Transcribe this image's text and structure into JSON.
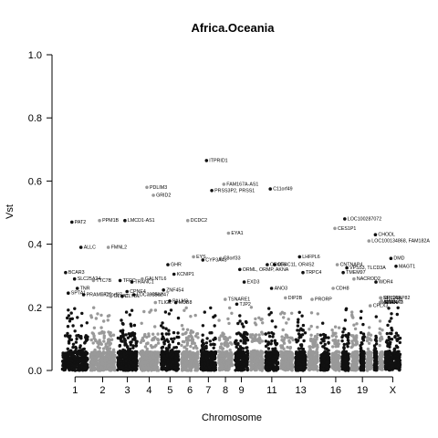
{
  "chart_data": {
    "type": "scatter",
    "title": "Africa.Oceania",
    "xlabel": "Chromosome",
    "ylabel": "Vst",
    "ylim": [
      0,
      1.0
    ],
    "yticks": [
      "0.0",
      "0.2",
      "0.4",
      "0.6",
      "0.8",
      "1.0"
    ],
    "chromosome_ticks": [
      "1",
      "2",
      "3",
      "4",
      "5",
      "6",
      "7",
      "8",
      "9",
      "11",
      "13",
      "16",
      "19",
      "X"
    ],
    "colors": {
      "odd": "#111111",
      "even": "#999999"
    },
    "grid": false,
    "legend": "none",
    "background_points": "dense cloud of SNP points per chromosome mostly below Vst 0.15",
    "labeled_points": [
      {
        "gene": "PAT2",
        "chr": "1",
        "vst": 0.47
      },
      {
        "gene": "PPM1B",
        "chr": "2",
        "vst": 0.475
      },
      {
        "gene": "LMCD1-AS1",
        "chr": "3",
        "vst": 0.475
      },
      {
        "gene": "PDLIM3",
        "chr": "4",
        "vst": 0.58
      },
      {
        "gene": "GRID2",
        "chr": "4",
        "vst": 0.555
      },
      {
        "gene": "DCDC2",
        "chr": "6",
        "vst": 0.475
      },
      {
        "gene": "ITPRID1",
        "chr": "7",
        "vst": 0.665
      },
      {
        "gene": "FAM167A-AS1",
        "chr": "8",
        "vst": 0.59
      },
      {
        "gene": "PRSS3P2, PRSS1",
        "chr": "7",
        "vst": 0.57
      },
      {
        "gene": "C11orf49",
        "chr": "11",
        "vst": 0.575
      },
      {
        "gene": "EYA1",
        "chr": "8",
        "vst": 0.435
      },
      {
        "gene": "LOC100287072",
        "chr": "17",
        "vst": 0.48
      },
      {
        "gene": "CES1P1",
        "chr": "16",
        "vst": 0.45
      },
      {
        "gene": "CHODL",
        "chr": "21",
        "vst": 0.43
      },
      {
        "gene": "LOC100134868, FAM182A",
        "chr": "20",
        "vst": 0.41
      },
      {
        "gene": "ALLC",
        "chr": "1",
        "vst": 0.39
      },
      {
        "gene": "FMNL2",
        "chr": "2",
        "vst": 0.39
      },
      {
        "gene": "EYS",
        "chr": "6",
        "vst": 0.36
      },
      {
        "gene": "C8orf33",
        "chr": "8",
        "vst": 0.355
      },
      {
        "gene": "CYP3A43",
        "chr": "7",
        "vst": 0.35
      },
      {
        "gene": "LHFPL6",
        "chr": "13",
        "vst": 0.36
      },
      {
        "gene": "DMD",
        "chr": "X",
        "vst": 0.355
      },
      {
        "gene": "MAGT1",
        "chr": "X",
        "vst": 0.33
      },
      {
        "gene": "GHR",
        "chr": "5",
        "vst": 0.335
      },
      {
        "gene": "OR4C11, OR4S2",
        "chr": "11",
        "vst": 0.335
      },
      {
        "gene": "OR4C6",
        "chr": "11",
        "vst": 0.335
      },
      {
        "gene": "CNTNAP4",
        "chr": "16",
        "vst": 0.335
      },
      {
        "gene": "ORML, ORMP, AKNA",
        "chr": "9",
        "vst": 0.32
      },
      {
        "gene": "VPS53, TLCD3A",
        "chr": "17",
        "vst": 0.325
      },
      {
        "gene": "TMEM97",
        "chr": "17",
        "vst": 0.31
      },
      {
        "gene": "BCAR3",
        "chr": "1",
        "vst": 0.31
      },
      {
        "gene": "KCNIP1",
        "chr": "5",
        "vst": 0.305
      },
      {
        "gene": "TRPC4",
        "chr": "13",
        "vst": 0.31
      },
      {
        "gene": "NACROD2",
        "chr": "18",
        "vst": 0.29
      },
      {
        "gene": "SLC25A24",
        "chr": "1",
        "vst": 0.29
      },
      {
        "gene": "TTC7B",
        "chr": "2",
        "vst": 0.285
      },
      {
        "gene": "TRANC1",
        "chr": "3",
        "vst": 0.28
      },
      {
        "gene": "TFRC",
        "chr": "3",
        "vst": 0.285
      },
      {
        "gene": "GALNTL6",
        "chr": "4",
        "vst": 0.29
      },
      {
        "gene": "EXD3",
        "chr": "9",
        "vst": 0.28
      },
      {
        "gene": "WDR4",
        "chr": "21",
        "vst": 0.28
      },
      {
        "gene": "PRAMEF20",
        "chr": "1",
        "vst": 0.24
      },
      {
        "gene": "CDH8",
        "chr": "16",
        "vst": 0.26
      },
      {
        "gene": "SPTA1",
        "chr": "1",
        "vst": 0.245
      },
      {
        "gene": "ANO3",
        "chr": "11",
        "vst": 0.26
      },
      {
        "gene": "ZNF454",
        "chr": "5",
        "vst": 0.255
      },
      {
        "gene": "CPNE4",
        "chr": "3",
        "vst": 0.25
      },
      {
        "gene": "TSNARE1",
        "chr": "8",
        "vst": 0.225
      },
      {
        "gene": "DIP2B",
        "chr": "12",
        "vst": 0.23
      },
      {
        "gene": "PRORP",
        "chr": "14",
        "vst": 0.225
      },
      {
        "gene": "RPL23AP82",
        "chr": "22",
        "vst": 0.23
      },
      {
        "gene": "RABL2B",
        "chr": "22",
        "vst": 0.22
      },
      {
        "gene": "ACR",
        "chr": "22",
        "vst": 0.215
      },
      {
        "gene": "SHANK3",
        "chr": "22",
        "vst": 0.215
      },
      {
        "gene": "ARSA",
        "chr": "22",
        "vst": 0.215
      },
      {
        "gene": "TJP2",
        "chr": "9",
        "vst": 0.21
      },
      {
        "gene": "LOC339862",
        "chr": "3",
        "vst": 0.24
      },
      {
        "gene": "C5orf47",
        "chr": "4",
        "vst": 0.24
      },
      {
        "gene": "CLYBL",
        "chr": "3",
        "vst": 0.235
      },
      {
        "gene": "TNR",
        "chr": "1",
        "vst": 0.26
      },
      {
        "gene": "TLIGL",
        "chr": "4",
        "vst": 0.215
      },
      {
        "gene": "PALM3",
        "chr": "5",
        "vst": 0.22
      },
      {
        "gene": "C1orf87",
        "chr": "2",
        "vst": 0.24
      },
      {
        "gene": "GLYAT",
        "chr": "2",
        "vst": 0.235
      },
      {
        "gene": "MUB8",
        "chr": "5",
        "vst": 0.215
      },
      {
        "gene": "SHISA9",
        "chr": "22",
        "vst": 0.23
      },
      {
        "gene": "CPLX3",
        "chr": "20",
        "vst": 0.205
      }
    ]
  }
}
